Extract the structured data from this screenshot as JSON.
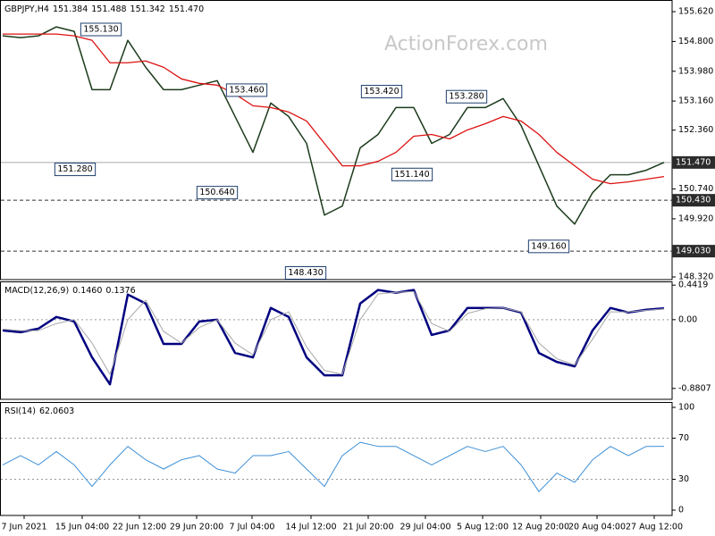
{
  "chart_data": [
    {
      "type": "line",
      "title": "GBPJPY,H4",
      "ohlc": [
        "151.384",
        "151.488",
        "151.342",
        "151.470"
      ],
      "watermark": "ActionForex.com",
      "series": [
        {
          "color": "#1c3b1c",
          "values": [
            154.954,
            154.905,
            154.954,
            155.201,
            155.077,
            153.474,
            153.474,
            154.831,
            154.091,
            153.474,
            153.474,
            153.598,
            153.721,
            152.735,
            151.748,
            153.105,
            152.735,
            151.995,
            150.022,
            150.269,
            151.872,
            152.241,
            152.981,
            152.981,
            151.995,
            152.241,
            152.981,
            152.981,
            153.228,
            152.488,
            151.378,
            150.269,
            149.775,
            150.638,
            151.132,
            151.132,
            151.255,
            151.47
          ]
        },
        {
          "color": "#dd1111",
          "values": [
            155.003,
            155.003,
            155.003,
            155.003,
            154.954,
            154.831,
            154.214,
            154.214,
            154.264,
            154.091,
            153.77,
            153.647,
            153.598,
            153.351,
            153.031,
            152.981,
            152.858,
            152.611,
            151.995,
            151.378,
            151.378,
            151.502,
            151.748,
            152.192,
            152.241,
            152.118,
            152.365,
            152.537,
            152.735,
            152.611,
            152.241,
            151.748,
            151.378,
            151.008,
            150.885,
            150.934,
            151.008,
            151.082
          ]
        }
      ],
      "xlim": [
        -0.15,
        37.45
      ],
      "ylim": [
        148.246,
        155.941
      ],
      "yticks": [
        {
          "value": 155.62,
          "label": "155.620"
        },
        {
          "value": 154.8,
          "label": "154.800"
        },
        {
          "value": 153.98,
          "label": "153.980"
        },
        {
          "value": 153.16,
          "label": "153.160"
        },
        {
          "value": 152.36,
          "label": "152.360"
        },
        {
          "value": 150.74,
          "label": "150.740"
        },
        {
          "value": 149.92,
          "label": "149.920"
        },
        {
          "value": 148.32,
          "label": "148.320"
        }
      ],
      "levels": [
        {
          "value": 150.43,
          "label": "150.430",
          "style": "dashed"
        },
        {
          "value": 149.03,
          "label": "149.030",
          "style": "dashed"
        },
        {
          "value": 151.47,
          "label": "151.470",
          "style": "solid"
        }
      ],
      "annotations": [
        {
          "x": 5.5,
          "value": 155.13,
          "label": "155.130"
        },
        {
          "x": 13.65,
          "value": 153.46,
          "label": "153.460"
        },
        {
          "x": 21.2,
          "value": 153.42,
          "label": "153.420"
        },
        {
          "x": 25.95,
          "value": 153.28,
          "label": "153.280"
        },
        {
          "x": 4.05,
          "value": 151.28,
          "label": "151.280"
        },
        {
          "x": 12.0,
          "value": 150.64,
          "label": "150.640"
        },
        {
          "x": 22.9,
          "value": 151.14,
          "label": "151.140"
        },
        {
          "x": 16.95,
          "value": 148.43,
          "label": "148.430"
        },
        {
          "x": 30.55,
          "value": 149.16,
          "label": "149.160"
        }
      ]
    },
    {
      "type": "line",
      "title": "MACD(12,26,9)",
      "legend_values": [
        "0.1460",
        "0.1376"
      ],
      "series": [
        {
          "color": "#000080",
          "width": 2.5,
          "values": [
            -0.138,
            -0.161,
            -0.115,
            0.035,
            -0.023,
            -0.483,
            -0.828,
            0.322,
            0.207,
            -0.311,
            -0.311,
            -0.023,
            0,
            -0.426,
            -0.483,
            0.15,
            0.035,
            -0.483,
            -0.713,
            -0.713,
            0.207,
            0.38,
            0.345,
            0.38,
            -0.196,
            -0.138,
            0.15,
            0.15,
            0.15,
            0.092,
            -0.426,
            -0.541,
            -0.598,
            -0.138,
            0.15,
            0.092,
            0.127,
            0.146
          ]
        },
        {
          "color": "#a8a8a8",
          "width": 1,
          "values": [
            -0.12,
            -0.14,
            -0.14,
            -0.05,
            0,
            -0.3,
            -0.7,
            0,
            0.25,
            -0.15,
            -0.3,
            -0.1,
            0,
            -0.3,
            -0.45,
            0,
            0.1,
            -0.35,
            -0.65,
            -0.7,
            0,
            0.33,
            0.35,
            0.36,
            -0.05,
            -0.15,
            0.08,
            0.14,
            0.15,
            0.1,
            -0.3,
            -0.5,
            -0.58,
            -0.25,
            0.1,
            0.1,
            0.12,
            0.1376
          ]
        }
      ],
      "xlim": [
        -0.15,
        37.45
      ],
      "ylim": [
        -1.02,
        0.49
      ],
      "yticks": [
        0.4419,
        {
          "value": 0,
          "label": "0.00"
        },
        -0.8807
      ],
      "level_lines": [
        0
      ]
    },
    {
      "type": "line",
      "title": "RSI(14)",
      "legend_values": [
        "62.0603"
      ],
      "series": [
        {
          "color": "#3d8fd6",
          "width": 1,
          "values": [
            44,
            53,
            44,
            57,
            44,
            23,
            44,
            62,
            49,
            40,
            49,
            53,
            40,
            36,
            53,
            53,
            57,
            40,
            23,
            53,
            66,
            62,
            62,
            53,
            44,
            53,
            62,
            57,
            62,
            44,
            18,
            36,
            27,
            49,
            62,
            53,
            62,
            62.0603
          ]
        }
      ],
      "xlim": [
        -0.15,
        37.45
      ],
      "ylim": [
        -5.2,
        105.2
      ],
      "yticks": [
        100,
        70,
        30,
        0
      ],
      "level_lines": [
        70,
        30
      ],
      "xticks": [
        {
          "value": 1.2,
          "label": "7 Jun 2021"
        },
        {
          "value": 4.45,
          "label": "15 Jun 04:00"
        },
        {
          "value": 7.65,
          "label": "22 Jun 12:00"
        },
        {
          "value": 10.85,
          "label": "29 Jun 20:00"
        },
        {
          "value": 13.95,
          "label": "7 Jul 04:00"
        },
        {
          "value": 17.25,
          "label": "14 Jul 12:00"
        },
        {
          "value": 20.45,
          "label": "21 Jul 20:00"
        },
        {
          "value": 23.65,
          "label": "29 Jul 04:00"
        },
        {
          "value": 26.85,
          "label": "5 Aug 12:00"
        },
        {
          "value": 30.1,
          "label": "12 Aug 20:00"
        },
        {
          "value": 33.25,
          "label": "20 Aug 04:00"
        },
        {
          "value": 36.45,
          "label": "27 Aug 12:00"
        }
      ]
    }
  ]
}
